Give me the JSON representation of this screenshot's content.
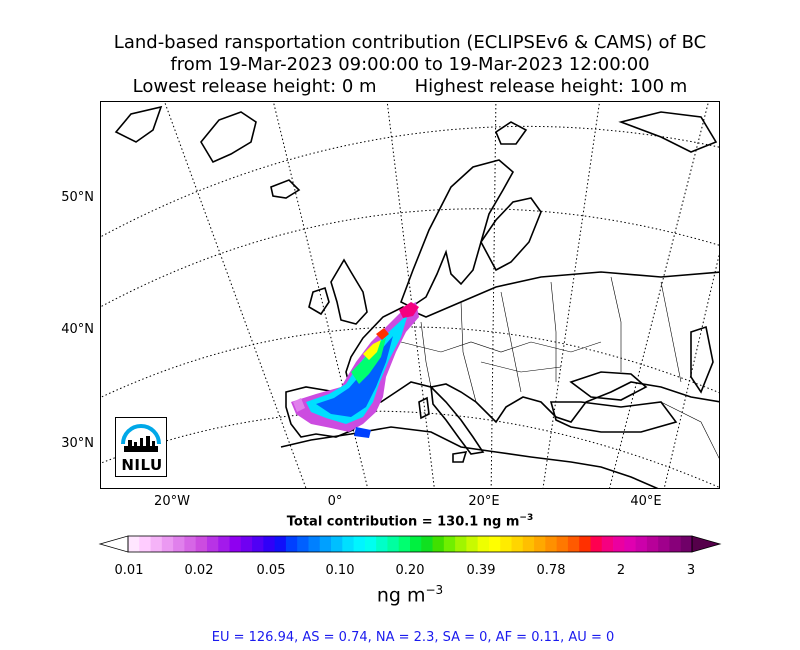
{
  "title": {
    "line1": "Land-based ransportation contribution (ECLIPSEv6 & CAMS) of BC",
    "line2": "from 19-Mar-2023 09:00:00 to 19-Mar-2023 12:00:00",
    "line3a": "Lowest release height: 0 m",
    "line3b": "Highest release height: 100 m"
  },
  "map": {
    "lat_labels": [
      "50°N",
      "40°N",
      "30°N"
    ],
    "lon_labels": [
      "20°W",
      "0°",
      "20°E",
      "40°E"
    ]
  },
  "total": {
    "prefix": "Total contribution = 130.1 ng m",
    "exp": "−3"
  },
  "colorbar": {
    "ticks": [
      "0.01",
      "0.02",
      "0.05",
      "0.10",
      "0.20",
      "0.39",
      "0.78",
      "2",
      "3"
    ],
    "unit_base": "ng m",
    "unit_exp": "−3",
    "colors": [
      "#ffe6ff",
      "#ffccff",
      "#f5b3f8",
      "#eb99f2",
      "#e080ec",
      "#d666e6",
      "#cc4ce0",
      "#b833e6",
      "#a31aeb",
      "#8f00f0",
      "#7000f2",
      "#5000f5",
      "#3000f8",
      "#1010fa",
      "#0040ff",
      "#0060ff",
      "#0080ff",
      "#00a0ff",
      "#00bfff",
      "#00dfff",
      "#00f5ff",
      "#00fff0",
      "#00ffc8",
      "#00ffa0",
      "#00ff70",
      "#00f040",
      "#10e020",
      "#40e000",
      "#70ef00",
      "#a0f500",
      "#c8fa00",
      "#eeff00",
      "#ffff00",
      "#ffeb00",
      "#ffd500",
      "#ffbf00",
      "#ffa800",
      "#ff9000",
      "#ff7800",
      "#ff5a00",
      "#ff3000",
      "#ff0050",
      "#f50080",
      "#eb00a0",
      "#e000b0",
      "#cc00aa",
      "#b80099",
      "#a0008c",
      "#88007a",
      "#700068"
    ]
  },
  "regions": "EU = 126.94,  AS = 0.74,  NA = 2.3,  SA = 0,  AF = 0.11,  AU = 0",
  "logo": {
    "text": "NILU"
  }
}
